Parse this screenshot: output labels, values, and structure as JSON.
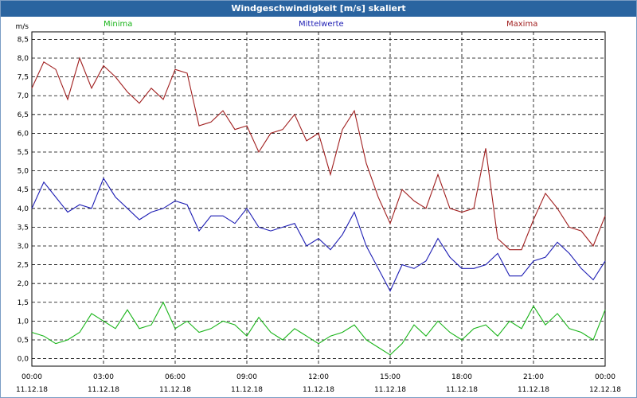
{
  "window": {
    "title": "Windgeschwindigkeit [m/s] skaliert"
  },
  "chart_data": {
    "type": "line",
    "title": "Windgeschwindigkeit [m/s] skaliert",
    "ylabel": "m/s",
    "ylim": [
      -0.2,
      8.7
    ],
    "yticks": [
      0.0,
      0.5,
      1.0,
      1.5,
      2.0,
      2.5,
      3.0,
      3.5,
      4.0,
      4.5,
      5.0,
      5.5,
      6.0,
      6.5,
      7.0,
      7.5,
      8.0,
      8.5
    ],
    "ytick_labels": [
      "0,0",
      "0,5",
      "1,0",
      "1,5",
      "2,0",
      "2,5",
      "3,0",
      "3,5",
      "4,0",
      "4,5",
      "5,0",
      "5,5",
      "6,0",
      "6,5",
      "7,0",
      "7,5",
      "8,0",
      "8,5"
    ],
    "xlim_hours": [
      0,
      24
    ],
    "xticks": [
      {
        "time": "00:00",
        "date": "11.12.18"
      },
      {
        "time": "03:00",
        "date": "11.12.18"
      },
      {
        "time": "06:00",
        "date": "11.12.18"
      },
      {
        "time": "09:00",
        "date": "11.12.18"
      },
      {
        "time": "12:00",
        "date": "11.12.18"
      },
      {
        "time": "15:00",
        "date": "11.12.18"
      },
      {
        "time": "18:00",
        "date": "11.12.18"
      },
      {
        "time": "21:00",
        "date": "11.12.18"
      },
      {
        "time": "00:00",
        "date": "12.12.18"
      }
    ],
    "grid": true,
    "legend_position": "top",
    "series": [
      {
        "name": "Minima",
        "color": "#19b419",
        "x": [
          0,
          0.5,
          1,
          1.5,
          2,
          2.5,
          3,
          3.5,
          4,
          4.5,
          5,
          5.5,
          6,
          6.5,
          7,
          7.5,
          8,
          8.5,
          9,
          9.5,
          10,
          10.5,
          11,
          11.5,
          12,
          12.5,
          13,
          13.5,
          14,
          14.5,
          15,
          15.5,
          16,
          16.5,
          17,
          17.5,
          18,
          18.5,
          19,
          19.5,
          20,
          20.5,
          21,
          21.5,
          22,
          22.5,
          23,
          23.5,
          24
        ],
        "values": [
          0.7,
          0.6,
          0.4,
          0.5,
          0.7,
          1.2,
          1.0,
          0.8,
          1.3,
          0.8,
          0.9,
          1.5,
          0.8,
          1.0,
          0.7,
          0.8,
          1.0,
          0.9,
          0.6,
          1.1,
          0.7,
          0.5,
          0.8,
          0.6,
          0.4,
          0.6,
          0.7,
          0.9,
          0.5,
          0.3,
          0.1,
          0.4,
          0.9,
          0.6,
          1.0,
          0.7,
          0.5,
          0.8,
          0.9,
          0.6,
          1.0,
          0.8,
          1.4,
          0.9,
          1.2,
          0.8,
          0.7,
          0.5,
          1.3
        ]
      },
      {
        "name": "Mittelwerte",
        "color": "#1e1eb4",
        "x": [
          0,
          0.5,
          1,
          1.5,
          2,
          2.5,
          3,
          3.5,
          4,
          4.5,
          5,
          5.5,
          6,
          6.5,
          7,
          7.5,
          8,
          8.5,
          9,
          9.5,
          10,
          10.5,
          11,
          11.5,
          12,
          12.5,
          13,
          13.5,
          14,
          14.5,
          15,
          15.5,
          16,
          16.5,
          17,
          17.5,
          18,
          18.5,
          19,
          19.5,
          20,
          20.5,
          21,
          21.5,
          22,
          22.5,
          23,
          23.5,
          24
        ],
        "values": [
          4.0,
          4.7,
          4.3,
          3.9,
          4.1,
          4.0,
          4.8,
          4.3,
          4.0,
          3.7,
          3.9,
          4.0,
          4.2,
          4.1,
          3.4,
          3.8,
          3.8,
          3.6,
          4.0,
          3.5,
          3.4,
          3.5,
          3.6,
          3.0,
          3.2,
          2.9,
          3.3,
          3.9,
          3.0,
          2.4,
          1.8,
          2.5,
          2.4,
          2.6,
          3.2,
          2.7,
          2.4,
          2.4,
          2.5,
          2.8,
          2.2,
          2.2,
          2.6,
          2.7,
          3.1,
          2.8,
          2.4,
          2.1,
          2.6
        ]
      },
      {
        "name": "Maxima",
        "color": "#a01e1e",
        "x": [
          0,
          0.5,
          1,
          1.5,
          2,
          2.5,
          3,
          3.5,
          4,
          4.5,
          5,
          5.5,
          6,
          6.5,
          7,
          7.5,
          8,
          8.5,
          9,
          9.5,
          10,
          10.5,
          11,
          11.5,
          12,
          12.5,
          13,
          13.5,
          14,
          14.5,
          15,
          15.5,
          16,
          16.5,
          17,
          17.5,
          18,
          18.5,
          19,
          19.5,
          20,
          20.5,
          21,
          21.5,
          22,
          22.5,
          23,
          23.5,
          24
        ],
        "values": [
          7.2,
          7.9,
          7.7,
          6.9,
          8.0,
          7.2,
          7.8,
          7.5,
          7.1,
          6.8,
          7.2,
          6.9,
          7.7,
          7.6,
          6.2,
          6.3,
          6.6,
          6.1,
          6.2,
          5.5,
          6.0,
          6.1,
          6.5,
          5.8,
          6.0,
          4.9,
          6.1,
          6.6,
          5.2,
          4.3,
          3.6,
          4.5,
          4.2,
          4.0,
          4.9,
          4.0,
          3.9,
          4.0,
          5.6,
          3.2,
          2.9,
          2.9,
          3.7,
          4.4,
          4.0,
          3.5,
          3.4,
          3.0,
          3.8
        ]
      }
    ]
  }
}
